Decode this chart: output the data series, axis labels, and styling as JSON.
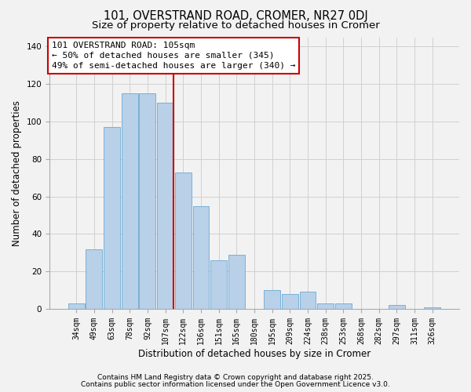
{
  "title": "101, OVERSTRAND ROAD, CROMER, NR27 0DJ",
  "subtitle": "Size of property relative to detached houses in Cromer",
  "xlabel": "Distribution of detached houses by size in Cromer",
  "ylabel": "Number of detached properties",
  "categories": [
    "34sqm",
    "49sqm",
    "63sqm",
    "78sqm",
    "92sqm",
    "107sqm",
    "122sqm",
    "136sqm",
    "151sqm",
    "165sqm",
    "180sqm",
    "195sqm",
    "209sqm",
    "224sqm",
    "238sqm",
    "253sqm",
    "268sqm",
    "282sqm",
    "297sqm",
    "311sqm",
    "326sqm"
  ],
  "values": [
    3,
    32,
    97,
    115,
    115,
    110,
    73,
    55,
    26,
    29,
    0,
    10,
    8,
    9,
    3,
    3,
    0,
    0,
    2,
    0,
    1
  ],
  "bar_color": "#b8d0e8",
  "bar_edgecolor": "#6aaad4",
  "highlight_index": 5,
  "highlight_color": "#cc0000",
  "ylim": [
    0,
    145
  ],
  "yticks": [
    0,
    20,
    40,
    60,
    80,
    100,
    120,
    140
  ],
  "ann_line1": "101 OVERSTRAND ROAD: 105sqm",
  "ann_line2": "← 50% of detached houses are smaller (345)",
  "ann_line3": "49% of semi-detached houses are larger (340) →",
  "footnote1": "Contains HM Land Registry data © Crown copyright and database right 2025.",
  "footnote2": "Contains public sector information licensed under the Open Government Licence v3.0.",
  "background_color": "#f2f2f2",
  "grid_color": "#d0d0d0",
  "title_fontsize": 10.5,
  "subtitle_fontsize": 9.5,
  "axis_label_fontsize": 8.5,
  "tick_fontsize": 7,
  "annotation_fontsize": 8,
  "footnote_fontsize": 6.5
}
